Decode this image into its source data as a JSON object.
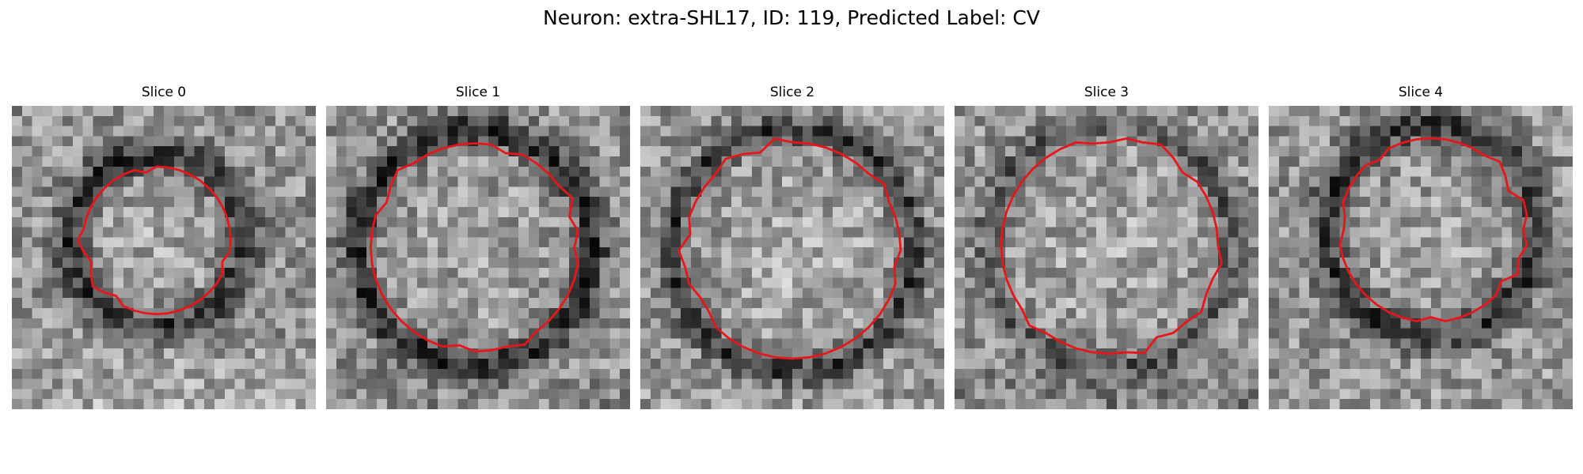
{
  "figure": {
    "title": "Neuron: extra-SHL17, ID: 119, Predicted Label: CV"
  },
  "contour_color": "#e8161b",
  "grid_size": 30,
  "panels": [
    {
      "title": "Slice 0",
      "seed": 11,
      "ring": {
        "cx": 14.3,
        "cy": 13.3,
        "r": 8.6,
        "w": 1.7,
        "dark": 0.36
      },
      "center_bright": 0.08,
      "bottom_bright": 0.1
    },
    {
      "title": "Slice 1",
      "seed": 23,
      "ring": {
        "cx": 14.7,
        "cy": 14.0,
        "r": 11.6,
        "w": 1.6,
        "dark": 0.4
      },
      "center_bright": 0.06,
      "bottom_bright": -0.05
    },
    {
      "title": "Slice 2",
      "seed": 37,
      "ring": {
        "cx": 15.0,
        "cy": 14.3,
        "r": 12.0,
        "w": 1.4,
        "dark": 0.34
      },
      "center_bright": 0.12,
      "bottom_bright": 0.02
    },
    {
      "title": "Slice 3",
      "seed": 41,
      "ring": {
        "cx": 15.3,
        "cy": 13.8,
        "r": 12.0,
        "w": 1.3,
        "dark": 0.22
      },
      "center_bright": 0.1,
      "bottom_bright": -0.1
    },
    {
      "title": "Slice 4",
      "seed": 53,
      "ring": {
        "cx": 16.0,
        "cy": 12.3,
        "r": 10.4,
        "w": 1.8,
        "dark": 0.34
      },
      "center_bright": 0.06,
      "bottom_bright": 0.04
    }
  ]
}
